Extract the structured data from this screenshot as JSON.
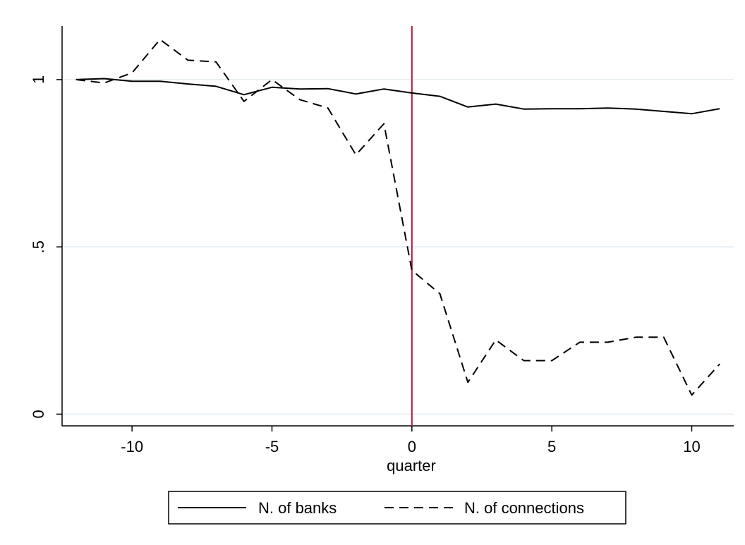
{
  "chart_data": {
    "type": "line",
    "title": "",
    "xlabel": "quarter",
    "ylabel": "",
    "xlim": [
      -12.5,
      11.5
    ],
    "ylim": [
      -0.035,
      1.16
    ],
    "xticks": [
      -10,
      -5,
      0,
      5,
      10
    ],
    "xtick_labels": [
      "-10",
      "-5",
      "0",
      "5",
      "10"
    ],
    "yticks": [
      0,
      0.5,
      1
    ],
    "ytick_labels": [
      "0",
      ".5",
      "1"
    ],
    "grid": "horizontal",
    "legend_position": "bottom",
    "reference_line": {
      "x": 0,
      "color": "#c0143c"
    },
    "x": [
      -12,
      -11,
      -10,
      -9,
      -8,
      -7,
      -6,
      -5,
      -4,
      -3,
      -2,
      -1,
      0,
      1,
      2,
      3,
      4,
      5,
      6,
      7,
      8,
      9,
      10,
      11
    ],
    "series": [
      {
        "name": "N. of banks",
        "style": "solid",
        "color": "#000000",
        "values": [
          1.0,
          1.003,
          0.995,
          0.995,
          0.987,
          0.98,
          0.955,
          0.977,
          0.972,
          0.973,
          0.957,
          0.972,
          0.96,
          0.95,
          0.918,
          0.927,
          0.912,
          0.913,
          0.913,
          0.915,
          0.912,
          0.905,
          0.898,
          0.913
        ]
      },
      {
        "name": "N. of connections",
        "style": "dashed",
        "color": "#000000",
        "values": [
          1.0,
          0.99,
          1.02,
          1.12,
          1.058,
          1.053,
          0.935,
          1.0,
          0.94,
          0.915,
          0.775,
          0.868,
          0.43,
          0.36,
          0.095,
          0.222,
          0.16,
          0.16,
          0.215,
          0.215,
          0.23,
          0.23,
          0.057,
          0.15
        ]
      }
    ]
  }
}
